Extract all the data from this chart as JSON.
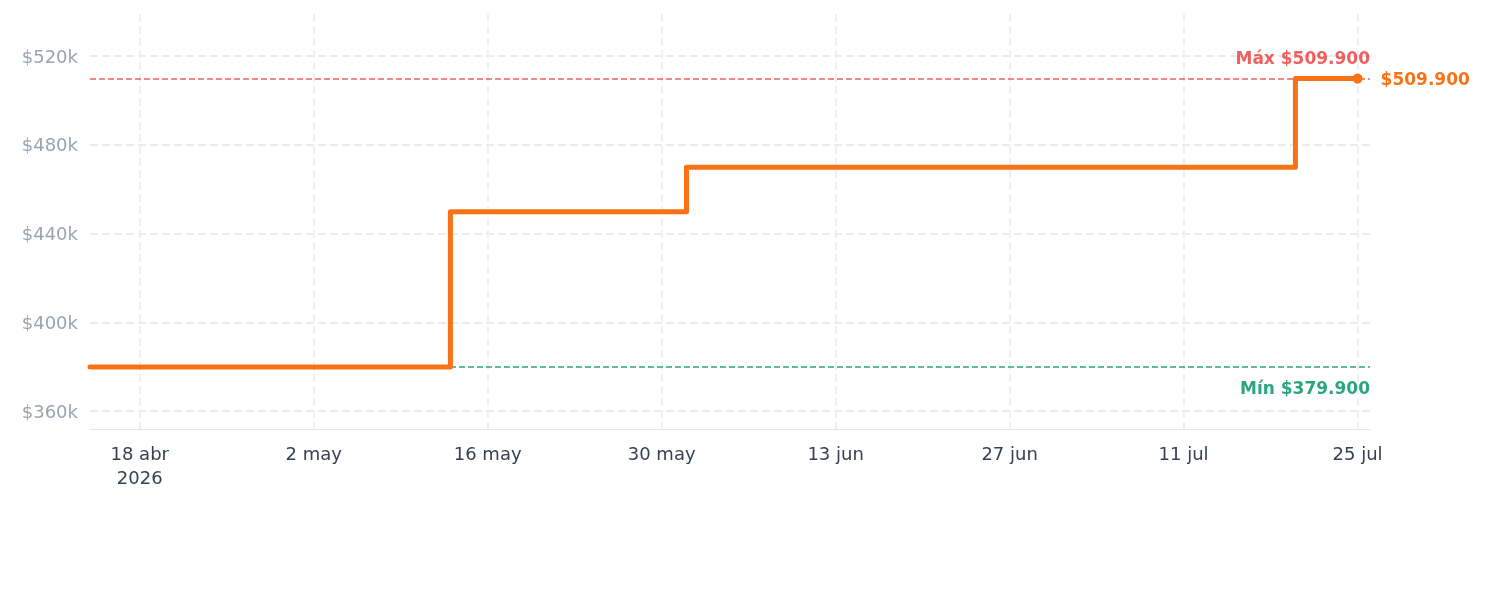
{
  "chart_data": {
    "type": "step",
    "x": [
      "2026-04-14",
      "2026-05-13",
      "2026-06-01",
      "2026-07-20",
      "2026-07-25"
    ],
    "series": [
      {
        "color": "#f97316",
        "values": [
          379900,
          449900,
          469900,
          509900,
          509900
        ],
        "value_labels": [
          null,
          null,
          null,
          null,
          "$509.900"
        ]
      }
    ],
    "xlim": [
      "2026-04-14",
      "2026-07-26"
    ],
    "xticks": [
      {
        "value": "2026-04-18",
        "label": "18 abr\n2026"
      },
      {
        "value": "2026-05-02",
        "label": "2 may"
      },
      {
        "value": "2026-05-16",
        "label": "16 may"
      },
      {
        "value": "2026-05-30",
        "label": "30 may"
      },
      {
        "value": "2026-06-13",
        "label": "13 jun"
      },
      {
        "value": "2026-06-27",
        "label": "27 jun"
      },
      {
        "value": "2026-07-11",
        "label": "11 jul"
      },
      {
        "value": "2026-07-25",
        "label": "25 jul"
      }
    ],
    "ylim": [
      352000,
      539000
    ],
    "yticks": [
      {
        "value": 360000,
        "label": "$360k"
      },
      {
        "value": 400000,
        "label": "$400k"
      },
      {
        "value": 440000,
        "label": "$440k"
      },
      {
        "value": 480000,
        "label": "$480k"
      },
      {
        "value": 520000,
        "label": "$520k"
      }
    ],
    "ref_lines": [
      {
        "axis": "y",
        "value": 509900,
        "label": "Máx $509.900",
        "color": "#ef4444",
        "line_style": "dashed"
      },
      {
        "axis": "y",
        "value": 379900,
        "label": "Mín $379.900",
        "color": "#059669",
        "line_style": "dashed"
      }
    ],
    "grid": true,
    "line_style": "solid"
  }
}
